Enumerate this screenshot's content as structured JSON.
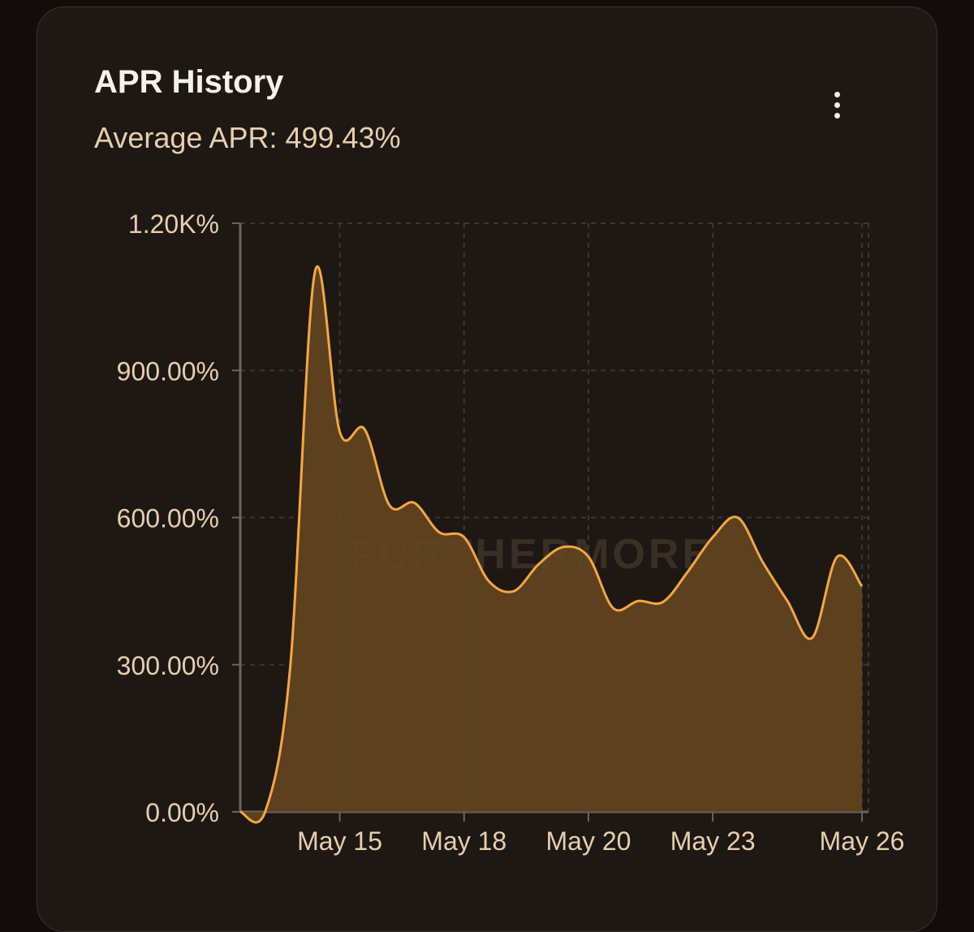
{
  "title": "APR History",
  "subtitle": "Average APR: 499.43%",
  "chart_data": {
    "type": "area",
    "watermark": "FURTHERMORE",
    "categories": [
      null,
      null,
      null,
      null,
      "May 15",
      null,
      null,
      null,
      null,
      "May 18",
      null,
      null,
      null,
      null,
      "May 20",
      null,
      null,
      null,
      null,
      "May 23",
      null,
      null,
      null,
      null,
      null,
      "May 26"
    ],
    "series": [
      {
        "name": "APR",
        "color": "#f5a742",
        "values": [
          0,
          0,
          290,
          1100,
          775,
          780,
          625,
          630,
          570,
          560,
          470,
          450,
          505,
          540,
          520,
          415,
          430,
          428,
          490,
          560,
          600,
          510,
          430,
          355,
          520,
          460
        ]
      }
    ],
    "fill_color": "#634520",
    "ylim": [
      0,
      1200
    ],
    "yticks": [
      {
        "value": 0,
        "label": "0.00%"
      },
      {
        "value": 300,
        "label": "300.00%"
      },
      {
        "value": 600,
        "label": "600.00%"
      },
      {
        "value": 900,
        "label": "900.00%"
      },
      {
        "value": 1200,
        "label": "1.20K%"
      }
    ],
    "grid": true
  }
}
